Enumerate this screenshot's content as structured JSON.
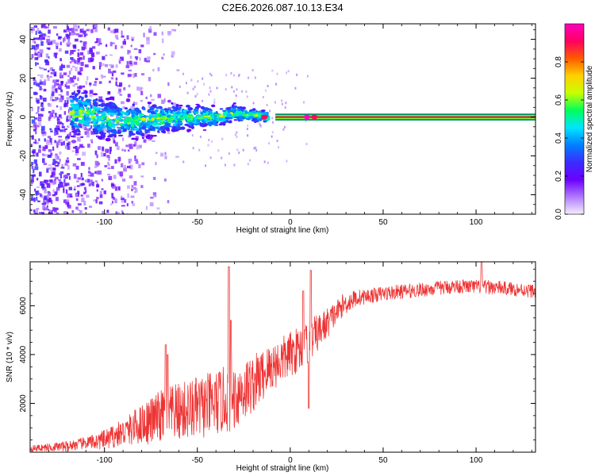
{
  "title": "C2E6.2026.087.10.13.E34",
  "colors": {
    "snr_line": "#ee3333",
    "band_edge": "#009966",
    "band_core": "#cc1f3a",
    "axis": "#000000"
  },
  "chart_data": [
    {
      "type": "heatmap",
      "name": "spectrogram",
      "xlabel": "Height of straight line (km)",
      "ylabel": "Frequency (Hz)",
      "xlim": [
        -140,
        132
      ],
      "ylim": [
        -50,
        48
      ],
      "xticks": [
        -100,
        -50,
        0,
        50,
        100
      ],
      "xtick_labels": [
        "-100",
        "-50",
        "0",
        "50",
        "100"
      ],
      "yticks": [
        -40,
        -20,
        0,
        20,
        40
      ],
      "ytick_labels": [
        "-40",
        "-20",
        "0",
        "20",
        "40"
      ],
      "colorbar": {
        "label": "Normalized spectral amplitude",
        "range": [
          0,
          1
        ],
        "ticks": [
          0,
          0.2,
          0.4,
          0.6,
          0.8
        ],
        "tick_labels": [
          "0.0",
          "0.2",
          "0.4",
          "0.6",
          "0.8"
        ],
        "colormap": [
          "#f4eefe",
          "#b07aff",
          "#6a00ff",
          "#3c2cff",
          "#0080ff",
          "#00e5ff",
          "#00ff5a",
          "#c8ff00",
          "#ffd000",
          "#ff5a00",
          "#ff0060",
          "#ff00c0"
        ]
      },
      "ridge": [
        {
          "x": -112,
          "y": 2
        },
        {
          "x": -100,
          "y": -1
        },
        {
          "x": -85,
          "y": -2
        },
        {
          "x": -70,
          "y": -1
        },
        {
          "x": -55,
          "y": 0
        },
        {
          "x": -40,
          "y": 0
        },
        {
          "x": -30,
          "y": 2
        },
        {
          "x": -20,
          "y": 1
        },
        {
          "x": -10,
          "y": 0
        },
        {
          "x": 0,
          "y": 0
        },
        {
          "x": 132,
          "y": 0
        }
      ],
      "band_halfwidth_hz": 1.8
    },
    {
      "type": "line",
      "name": "snr",
      "xlabel": "Height of straight line (km)",
      "ylabel": "SNR (10 * v/v)",
      "xlim": [
        -140,
        132
      ],
      "ylim": [
        0,
        7800
      ],
      "xticks": [
        -100,
        -50,
        0,
        50,
        100
      ],
      "xtick_labels": [
        "-100",
        "-50",
        "0",
        "50",
        "100"
      ],
      "yticks": [
        2000,
        4000,
        6000
      ],
      "ytick_labels": [
        "2000",
        "4000",
        "6000"
      ],
      "trend": [
        {
          "x": -140,
          "y": 150
        },
        {
          "x": -120,
          "y": 250
        },
        {
          "x": -100,
          "y": 500
        },
        {
          "x": -90,
          "y": 800
        },
        {
          "x": -80,
          "y": 1150
        },
        {
          "x": -70,
          "y": 1450
        },
        {
          "x": -60,
          "y": 1650
        },
        {
          "x": -50,
          "y": 1800
        },
        {
          "x": -40,
          "y": 2000
        },
        {
          "x": -30,
          "y": 2300
        },
        {
          "x": -20,
          "y": 2800
        },
        {
          "x": -10,
          "y": 3500
        },
        {
          "x": 0,
          "y": 4000
        },
        {
          "x": 10,
          "y": 4500
        },
        {
          "x": 20,
          "y": 5300
        },
        {
          "x": 28,
          "y": 6000
        },
        {
          "x": 35,
          "y": 6300
        },
        {
          "x": 50,
          "y": 6500
        },
        {
          "x": 70,
          "y": 6650
        },
        {
          "x": 90,
          "y": 6800
        },
        {
          "x": 110,
          "y": 6750
        },
        {
          "x": 132,
          "y": 6600
        }
      ],
      "noise": [
        {
          "x": -140,
          "y": 120
        },
        {
          "x": -110,
          "y": 250
        },
        {
          "x": -90,
          "y": 550
        },
        {
          "x": -70,
          "y": 1100
        },
        {
          "x": -50,
          "y": 1300
        },
        {
          "x": -30,
          "y": 1400
        },
        {
          "x": -10,
          "y": 1000
        },
        {
          "x": 10,
          "y": 900
        },
        {
          "x": 25,
          "y": 500
        },
        {
          "x": 40,
          "y": 300
        },
        {
          "x": 132,
          "y": 280
        }
      ],
      "spikes": [
        {
          "x": -67,
          "y": 4400
        },
        {
          "x": -66,
          "y": 4000
        },
        {
          "x": -33,
          "y": 7600
        },
        {
          "x": -32,
          "y": 5400
        },
        {
          "x": 7,
          "y": 6600
        },
        {
          "x": 8,
          "y": 5000
        },
        {
          "x": 11,
          "y": 7450
        },
        {
          "x": 10,
          "y": 1800
        },
        {
          "x": 103,
          "y": 7800
        }
      ]
    }
  ]
}
